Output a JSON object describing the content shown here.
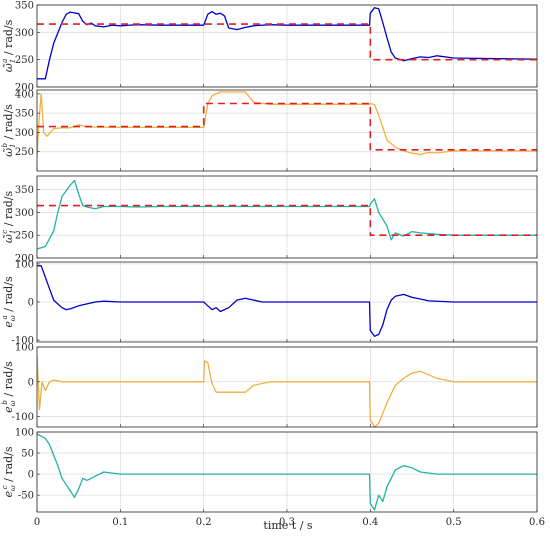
{
  "colors": {
    "blue": "#0000cc",
    "orange": "#f0b040",
    "teal": "#20b2aa",
    "ref": "#e02020"
  },
  "chart_data": [
    {
      "type": "line",
      "ylabel_main": "ω̃",
      "ylabel_sup": "a",
      "ylabel_sub": "1",
      "ylabel_unit": " / rad/s",
      "xlim": [
        0,
        0.6
      ],
      "ylim": [
        200,
        350
      ],
      "yticks": [
        "200",
        "250",
        "300",
        "350"
      ],
      "grid": true,
      "series": [
        {
          "color": "#0000cc",
          "x": [
            0,
            0.01,
            0.015,
            0.02,
            0.03,
            0.035,
            0.04,
            0.05,
            0.055,
            0.06,
            0.065,
            0.07,
            0.08,
            0.09,
            0.1,
            0.12,
            0.15,
            0.2,
            0.205,
            0.21,
            0.215,
            0.22,
            0.225,
            0.23,
            0.24,
            0.25,
            0.26,
            0.28,
            0.3,
            0.35,
            0.399,
            0.4,
            0.405,
            0.41,
            0.415,
            0.42,
            0.425,
            0.43,
            0.44,
            0.45,
            0.46,
            0.47,
            0.48,
            0.5,
            0.55,
            0.6
          ],
          "y": [
            215,
            215,
            250,
            280,
            318,
            333,
            337,
            334,
            320,
            314,
            317,
            312,
            310,
            313,
            312,
            314,
            313,
            313,
            333,
            338,
            333,
            335,
            330,
            308,
            305,
            309,
            312,
            314,
            313,
            313,
            313,
            335,
            345,
            343,
            318,
            290,
            264,
            253,
            248,
            252,
            255,
            254,
            257,
            253,
            252,
            251
          ]
        },
        {
          "color": "#e02020",
          "dashed": true,
          "x": [
            0,
            0.4,
            0.4,
            0.6
          ],
          "y": [
            315,
            315,
            250,
            250
          ]
        }
      ]
    },
    {
      "type": "line",
      "ylabel_main": "ω̃",
      "ylabel_sup": "b",
      "ylabel_sub": "1",
      "ylabel_unit": " / rad/s",
      "xlim": [
        0,
        0.6
      ],
      "ylim": [
        200,
        410
      ],
      "yticks": [
        "250",
        "300",
        "350",
        "400"
      ],
      "grid": true,
      "series": [
        {
          "color": "#f0b040",
          "x": [
            0,
            0.002,
            0.005,
            0.008,
            0.012,
            0.02,
            0.03,
            0.04,
            0.05,
            0.06,
            0.1,
            0.15,
            0.2,
            0.205,
            0.21,
            0.22,
            0.25,
            0.26,
            0.28,
            0.3,
            0.35,
            0.399,
            0.4,
            0.405,
            0.41,
            0.42,
            0.43,
            0.44,
            0.45,
            0.46,
            0.47,
            0.48,
            0.5,
            0.55,
            0.6
          ],
          "y": [
            235,
            320,
            400,
            300,
            290,
            310,
            312,
            312,
            320,
            314,
            313,
            313,
            313,
            375,
            395,
            405,
            405,
            378,
            373,
            373,
            373,
            373,
            375,
            372,
            345,
            280,
            262,
            252,
            246,
            243,
            248,
            247,
            252,
            252,
            252
          ]
        },
        {
          "color": "#e02020",
          "dashed": true,
          "x": [
            0,
            0.2,
            0.2,
            0.4,
            0.4,
            0.6
          ],
          "y": [
            315,
            315,
            375,
            375,
            255,
            255
          ]
        }
      ]
    },
    {
      "type": "line",
      "ylabel_main": "ω̃",
      "ylabel_sup": "c",
      "ylabel_sub": "1",
      "ylabel_unit": " / rad/s",
      "xlim": [
        0,
        0.6
      ],
      "ylim": [
        200,
        380
      ],
      "yticks": [
        "200",
        "250",
        "300",
        "350"
      ],
      "grid": true,
      "series": [
        {
          "color": "#20b2aa",
          "x": [
            0,
            0.01,
            0.02,
            0.025,
            0.03,
            0.04,
            0.045,
            0.05,
            0.055,
            0.06,
            0.07,
            0.08,
            0.1,
            0.12,
            0.15,
            0.2,
            0.25,
            0.3,
            0.35,
            0.399,
            0.4,
            0.405,
            0.41,
            0.42,
            0.425,
            0.43,
            0.44,
            0.45,
            0.46,
            0.48,
            0.5,
            0.55,
            0.6
          ],
          "y": [
            220,
            225,
            260,
            300,
            335,
            360,
            370,
            340,
            315,
            312,
            308,
            313,
            313,
            312,
            313,
            313,
            313,
            313,
            313,
            313,
            318,
            330,
            300,
            270,
            240,
            255,
            248,
            258,
            255,
            252,
            250,
            250,
            250
          ]
        },
        {
          "color": "#e02020",
          "dashed": true,
          "x": [
            0,
            0.4,
            0.4,
            0.6
          ],
          "y": [
            315,
            315,
            250,
            250
          ]
        }
      ]
    },
    {
      "type": "line",
      "ylabel_main": "e",
      "ylabel_sup": "a",
      "ylabel_sub": "ω",
      "ylabel_unit": " / rad/s",
      "xlim": [
        0,
        0.6
      ],
      "ylim": [
        -105,
        105
      ],
      "yticks": [
        "-100",
        "0",
        "100"
      ],
      "grid": true,
      "series": [
        {
          "color": "#0000cc",
          "x": [
            0,
            0.005,
            0.01,
            0.015,
            0.02,
            0.03,
            0.035,
            0.04,
            0.05,
            0.06,
            0.07,
            0.08,
            0.1,
            0.15,
            0.2,
            0.205,
            0.21,
            0.215,
            0.22,
            0.23,
            0.24,
            0.25,
            0.26,
            0.27,
            0.3,
            0.35,
            0.399,
            0.4,
            0.405,
            0.41,
            0.415,
            0.42,
            0.425,
            0.43,
            0.44,
            0.45,
            0.46,
            0.47,
            0.5,
            0.55,
            0.6
          ],
          "y": [
            95,
            95,
            65,
            35,
            5,
            -15,
            -20,
            -18,
            -10,
            -5,
            0,
            2,
            0,
            0,
            0,
            -10,
            -20,
            -15,
            -25,
            -15,
            5,
            10,
            5,
            0,
            0,
            0,
            0,
            -75,
            -90,
            -85,
            -60,
            -20,
            5,
            15,
            20,
            12,
            8,
            3,
            0,
            0,
            0
          ]
        }
      ]
    },
    {
      "type": "line",
      "ylabel_main": "e",
      "ylabel_sup": "b",
      "ylabel_sub": "ω",
      "ylabel_unit": " / rad/s",
      "xlim": [
        0,
        0.6
      ],
      "ylim": [
        -130,
        100
      ],
      "yticks": [
        "-100",
        "0",
        "100"
      ],
      "grid": true,
      "series": [
        {
          "color": "#f0b040",
          "x": [
            0,
            0.003,
            0.006,
            0.01,
            0.015,
            0.02,
            0.03,
            0.05,
            0.1,
            0.2,
            0.201,
            0.205,
            0.21,
            0.215,
            0.25,
            0.26,
            0.28,
            0.3,
            0.35,
            0.399,
            0.4,
            0.405,
            0.41,
            0.42,
            0.43,
            0.44,
            0.45,
            0.46,
            0.47,
            0.48,
            0.5,
            0.55,
            0.6
          ],
          "y": [
            75,
            -80,
            0,
            -25,
            0,
            5,
            0,
            0,
            0,
            0,
            60,
            55,
            -5,
            -30,
            -30,
            -10,
            0,
            0,
            0,
            0,
            -110,
            -130,
            -120,
            -60,
            -10,
            10,
            25,
            30,
            20,
            10,
            0,
            0,
            0
          ]
        }
      ]
    },
    {
      "type": "line",
      "ylabel_main": "e",
      "ylabel_sup": "c",
      "ylabel_sub": "ω",
      "ylabel_unit": " / rad/s",
      "xlim": [
        0,
        0.6
      ],
      "ylim": [
        -90,
        100
      ],
      "yticks": [
        "-50",
        "0",
        "50",
        "100"
      ],
      "grid": true,
      "series": [
        {
          "color": "#20b2aa",
          "x": [
            0,
            0.005,
            0.01,
            0.015,
            0.02,
            0.025,
            0.03,
            0.04,
            0.045,
            0.05,
            0.055,
            0.06,
            0.07,
            0.08,
            0.1,
            0.15,
            0.2,
            0.25,
            0.3,
            0.35,
            0.399,
            0.4,
            0.405,
            0.41,
            0.415,
            0.42,
            0.425,
            0.43,
            0.44,
            0.45,
            0.46,
            0.48,
            0.5,
            0.55,
            0.6
          ],
          "y": [
            95,
            90,
            85,
            70,
            45,
            20,
            -10,
            -40,
            -55,
            -35,
            -10,
            -15,
            -5,
            5,
            0,
            0,
            0,
            0,
            0,
            0,
            0,
            -70,
            -85,
            -50,
            -65,
            -30,
            -10,
            10,
            20,
            15,
            5,
            0,
            0,
            0,
            0
          ]
        }
      ]
    }
  ],
  "xaxis": {
    "ticks": [
      "0",
      "0.1",
      "0.2",
      "0.3",
      "0.4",
      "0.5",
      "0.6"
    ],
    "label": "time t / s"
  }
}
